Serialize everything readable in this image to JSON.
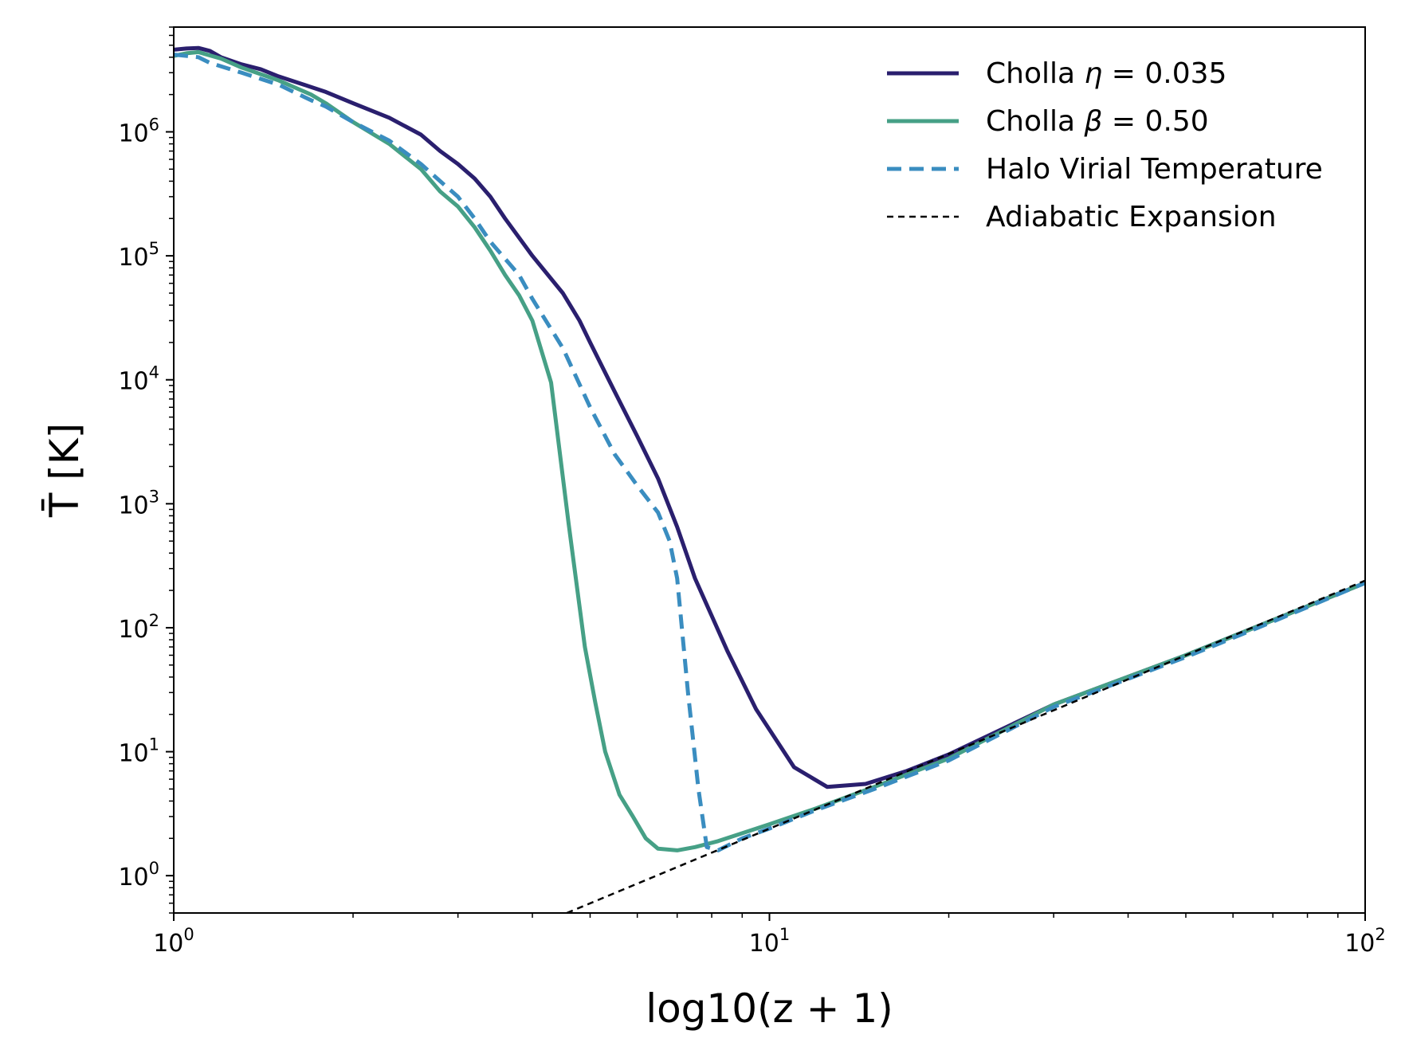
{
  "chart_data": {
    "type": "line",
    "xlabel": "log10(z + 1)",
    "ylabel": "T̄ [K]",
    "xscale": "log",
    "yscale": "log",
    "xlim": [
      1,
      100
    ],
    "ylim": [
      0.5,
      7000000
    ],
    "grid": false,
    "legend_position": "top-right",
    "x_ticks": [
      {
        "value": 1,
        "base": "10",
        "exp": "0"
      },
      {
        "value": 10,
        "base": "10",
        "exp": "1"
      },
      {
        "value": 100,
        "base": "10",
        "exp": "2"
      }
    ],
    "y_ticks": [
      {
        "value": 1,
        "base": "10",
        "exp": "0"
      },
      {
        "value": 10,
        "base": "10",
        "exp": "1"
      },
      {
        "value": 100,
        "base": "10",
        "exp": "2"
      },
      {
        "value": 1000,
        "base": "10",
        "exp": "3"
      },
      {
        "value": 10000,
        "base": "10",
        "exp": "4"
      },
      {
        "value": 100000,
        "base": "10",
        "exp": "5"
      },
      {
        "value": 1000000,
        "base": "10",
        "exp": "6"
      }
    ],
    "series": [
      {
        "name": "Cholla η = 0.035",
        "legend_prefix": "Cholla ",
        "legend_symbol": "η",
        "legend_suffix": " = 0.035",
        "color": "#2a1f6e",
        "style": "solid",
        "points": [
          [
            1.0,
            4600000
          ],
          [
            1.05,
            4700000
          ],
          [
            1.1,
            4750000
          ],
          [
            1.15,
            4500000
          ],
          [
            1.2,
            4000000
          ],
          [
            1.3,
            3500000
          ],
          [
            1.4,
            3200000
          ],
          [
            1.5,
            2800000
          ],
          [
            1.7,
            2300000
          ],
          [
            1.8,
            2100000
          ],
          [
            2.0,
            1700000
          ],
          [
            2.3,
            1300000
          ],
          [
            2.6,
            950000
          ],
          [
            2.8,
            700000
          ],
          [
            3.0,
            550000
          ],
          [
            3.2,
            420000
          ],
          [
            3.4,
            300000
          ],
          [
            3.6,
            200000
          ],
          [
            4.0,
            100000
          ],
          [
            4.5,
            50000
          ],
          [
            4.8,
            30000
          ],
          [
            5.0,
            20000
          ],
          [
            5.5,
            8000
          ],
          [
            6.0,
            3500
          ],
          [
            6.5,
            1600
          ],
          [
            7.0,
            650
          ],
          [
            7.5,
            250
          ],
          [
            8.5,
            65
          ],
          [
            9.5,
            22
          ],
          [
            11.0,
            7.5
          ],
          [
            12.5,
            5.2
          ],
          [
            14.5,
            5.5
          ],
          [
            17.0,
            7.0
          ],
          [
            20.0,
            9.5
          ],
          [
            30.0,
            24
          ],
          [
            50.0,
            60
          ],
          [
            70.0,
            115
          ],
          [
            100.0,
            230
          ]
        ]
      },
      {
        "name": "Cholla β = 0.50",
        "legend_prefix": "Cholla ",
        "legend_symbol": "β",
        "legend_suffix": " = 0.50",
        "color": "#46a086",
        "style": "solid",
        "points": [
          [
            1.0,
            4100000
          ],
          [
            1.05,
            4300000
          ],
          [
            1.1,
            4400000
          ],
          [
            1.2,
            3900000
          ],
          [
            1.3,
            3300000
          ],
          [
            1.5,
            2600000
          ],
          [
            1.7,
            2000000
          ],
          [
            1.8,
            1700000
          ],
          [
            2.0,
            1200000
          ],
          [
            2.3,
            800000
          ],
          [
            2.6,
            500000
          ],
          [
            2.8,
            330000
          ],
          [
            3.0,
            250000
          ],
          [
            3.2,
            170000
          ],
          [
            3.4,
            110000
          ],
          [
            3.6,
            70000
          ],
          [
            3.8,
            48000
          ],
          [
            4.0,
            30000
          ],
          [
            4.3,
            9500
          ],
          [
            4.6,
            700
          ],
          [
            4.9,
            70
          ],
          [
            5.1,
            25
          ],
          [
            5.3,
            10
          ],
          [
            5.6,
            4.5
          ],
          [
            5.9,
            3.0
          ],
          [
            6.2,
            2.0
          ],
          [
            6.5,
            1.65
          ],
          [
            7.0,
            1.6
          ],
          [
            7.5,
            1.7
          ],
          [
            8.2,
            1.9
          ],
          [
            9.0,
            2.2
          ],
          [
            10.0,
            2.6
          ],
          [
            12.0,
            3.5
          ],
          [
            15.0,
            5.2
          ],
          [
            20.0,
            8.8
          ],
          [
            30.0,
            24
          ],
          [
            50.0,
            60
          ],
          [
            70.0,
            115
          ],
          [
            100.0,
            230
          ]
        ]
      },
      {
        "name": "Halo Virial Temperature",
        "legend_prefix": "Halo Virial Temperature",
        "legend_symbol": "",
        "legend_suffix": "",
        "color": "#3a8dc0",
        "style": "dashed",
        "points": [
          [
            1.0,
            4200000
          ],
          [
            1.05,
            4100000
          ],
          [
            1.1,
            4000000
          ],
          [
            1.15,
            3600000
          ],
          [
            1.3,
            3000000
          ],
          [
            1.5,
            2400000
          ],
          [
            1.7,
            1800000
          ],
          [
            1.8,
            1600000
          ],
          [
            2.0,
            1200000
          ],
          [
            2.3,
            850000
          ],
          [
            2.6,
            550000
          ],
          [
            2.8,
            400000
          ],
          [
            3.0,
            300000
          ],
          [
            3.2,
            200000
          ],
          [
            3.4,
            130000
          ],
          [
            3.8,
            70000
          ],
          [
            4.0,
            45000
          ],
          [
            4.5,
            18000
          ],
          [
            5.0,
            6000
          ],
          [
            5.5,
            2500
          ],
          [
            6.0,
            1400
          ],
          [
            6.5,
            850
          ],
          [
            6.8,
            500
          ],
          [
            7.0,
            250
          ],
          [
            7.3,
            30
          ],
          [
            7.6,
            5
          ],
          [
            7.85,
            1.7
          ],
          [
            8.2,
            1.6
          ],
          [
            9.0,
            2.0
          ],
          [
            10.0,
            2.4
          ],
          [
            12.0,
            3.4
          ],
          [
            15.0,
            5.0
          ],
          [
            20.0,
            8.5
          ],
          [
            30.0,
            23
          ],
          [
            50.0,
            58
          ],
          [
            70.0,
            112
          ],
          [
            100.0,
            230
          ]
        ]
      },
      {
        "name": "Adiabatic Expansion",
        "legend_prefix": "Adiabatic Expansion",
        "legend_symbol": "",
        "legend_suffix": "",
        "color": "#000000",
        "style": "dashed-thin",
        "points": [
          [
            4.57,
            0.5
          ],
          [
            100.0,
            240
          ]
        ]
      }
    ]
  }
}
